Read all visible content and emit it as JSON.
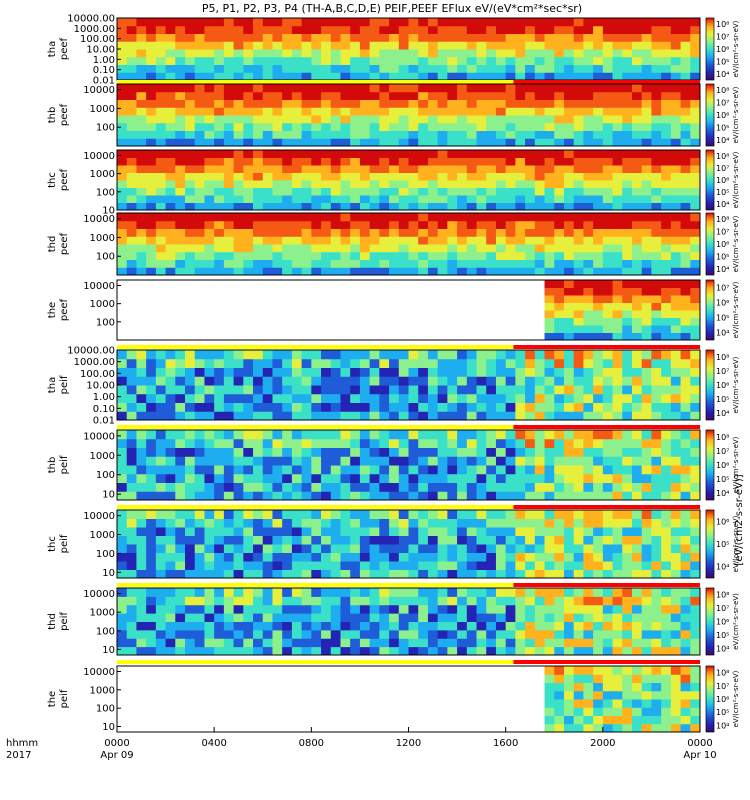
{
  "chart_data": {
    "type": "heatmap",
    "title": "P5, P1, P2, P3, P4 (TH-A,B,C,D,E) PEIF,PEEF EFlux eV/(eV*cm²*sec*sr)",
    "x_ticks": [
      "0000",
      "0400",
      "0800",
      "1200",
      "1600",
      "2000",
      "0000"
    ],
    "x_dates": [
      "Apr 09",
      "Apr 10"
    ],
    "x_title": [
      "hhmm",
      "2017"
    ],
    "y_title": "[eV/(cm2-s-sr-eV)]",
    "colorbar_label": "eV/(cm²-s-sr-eV)",
    "panels": [
      {
        "label": [
          "tha",
          "peef"
        ],
        "ylim": [
          0.01,
          10000
        ],
        "y_ticks": [
          "10000.00",
          "1000.00",
          "100.00",
          "10.00",
          "1.00",
          "0.10",
          "0.01"
        ],
        "cbar_ticks": [
          "10⁸",
          "10⁷",
          "10⁶",
          "10⁵",
          "10⁴"
        ],
        "has_bar": true
      },
      {
        "label": [
          "thb",
          "peef"
        ],
        "ylim": [
          10,
          20000
        ],
        "y_ticks": [
          "10000",
          "1000",
          "100"
        ],
        "cbar_ticks": [
          "10⁸",
          "10⁷",
          "10⁶",
          "10⁵",
          "10⁴"
        ],
        "has_bar": false
      },
      {
        "label": [
          "thc",
          "peef"
        ],
        "ylim": [
          10,
          20000
        ],
        "y_ticks": [
          "10000",
          "1000",
          "100",
          "10"
        ],
        "cbar_ticks": [
          "10⁸",
          "10⁷",
          "10⁶",
          "10⁵",
          "10⁴"
        ],
        "has_bar": false
      },
      {
        "label": [
          "thd",
          "peef"
        ],
        "ylim": [
          10,
          20000
        ],
        "y_ticks": [
          "10000",
          "1000",
          "100"
        ],
        "cbar_ticks": [
          "10⁸",
          "10⁷",
          "10⁶",
          "10⁵",
          "10⁴"
        ],
        "has_bar": false
      },
      {
        "label": [
          "the",
          "peef"
        ],
        "ylim": [
          10,
          20000
        ],
        "y_ticks": [
          "10000",
          "1000",
          "100"
        ],
        "cbar_ticks": [
          "10⁷",
          "10⁶",
          "10⁵",
          "10⁴"
        ],
        "has_bar": true
      },
      {
        "label": [
          "tha",
          "peif"
        ],
        "ylim": [
          0.01,
          10000
        ],
        "y_ticks": [
          "10000.00",
          "1000.00",
          "100.00",
          "10.00",
          "1.00",
          "0.10",
          "0.01"
        ],
        "cbar_ticks": [
          "10⁸",
          "10⁷",
          "10⁶",
          "10⁵",
          "10⁴"
        ],
        "has_bar": true
      },
      {
        "label": [
          "thb",
          "peif"
        ],
        "ylim": [
          5,
          20000
        ],
        "y_ticks": [
          "10000",
          "1000",
          "100",
          "10"
        ],
        "cbar_ticks": [
          "10⁸",
          "10⁷",
          "10⁶",
          "10⁵",
          "10⁴"
        ],
        "has_bar": true
      },
      {
        "label": [
          "thc",
          "peif"
        ],
        "ylim": [
          5,
          20000
        ],
        "y_ticks": [
          "10000",
          "1000",
          "100",
          "10"
        ],
        "cbar_ticks": [
          "10⁶",
          "10⁵",
          "10⁴"
        ],
        "has_bar": true
      },
      {
        "label": [
          "thd",
          "peif"
        ],
        "ylim": [
          5,
          20000
        ],
        "y_ticks": [
          "10000",
          "1000",
          "100",
          "10"
        ],
        "cbar_ticks": [
          "10⁸",
          "10⁷",
          "10⁶",
          "10⁵",
          "10⁴"
        ],
        "has_bar": true
      },
      {
        "label": [
          "the",
          "peif"
        ],
        "ylim": [
          5,
          20000
        ],
        "y_ticks": [
          "10000",
          "1000",
          "100",
          "10"
        ],
        "cbar_ticks": [
          "10⁸",
          "10⁷",
          "10⁶",
          "10⁵",
          "10⁴"
        ],
        "has_bar": false
      }
    ],
    "colors": [
      "#3b0a6b",
      "#2424b4",
      "#1e5cd8",
      "#1eaef0",
      "#3be0c8",
      "#8cf08c",
      "#e6f03c",
      "#ffb21e",
      "#f45a14",
      "#d20a0a"
    ],
    "bar_colors": {
      "yellow": "#ffff00",
      "red": "#ff0000"
    }
  }
}
